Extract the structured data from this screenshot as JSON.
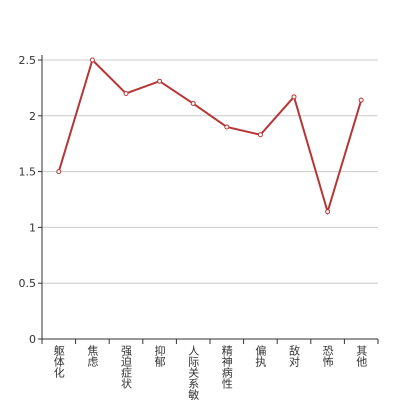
{
  "chart_data": {
    "type": "line",
    "categories": [
      "躯体化",
      "焦虑",
      "强迫症状",
      "抑郁",
      "人际关系敏",
      "精神病性",
      "偏执",
      "敌对",
      "恐怖",
      "其他"
    ],
    "values": [
      1.5,
      2.5,
      2.2,
      2.31,
      2.11,
      1.9,
      1.83,
      2.17,
      1.14,
      2.14
    ],
    "color": "#b83535",
    "ylim": [
      0,
      2.5
    ],
    "yticks": [
      0,
      0.5,
      1,
      1.5,
      2,
      2.5
    ],
    "grid": true
  }
}
